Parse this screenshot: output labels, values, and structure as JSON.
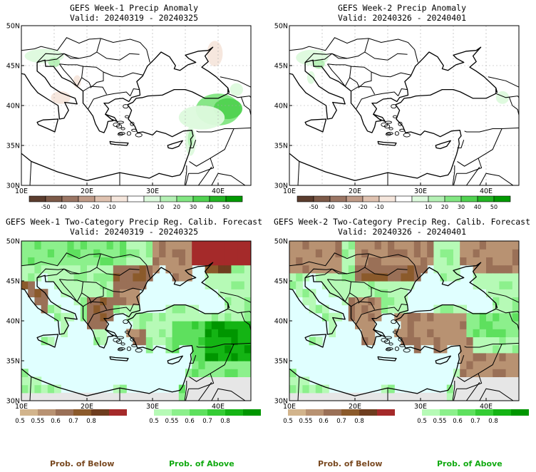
{
  "panels": [
    {
      "title": "GEFS Week-1 Precip Anomaly",
      "valid": "Valid: 20240319 - 20240325",
      "kind": "anomaly",
      "blobs": [
        {
          "lon": 40.0,
          "lat": 39.5,
          "rx": 3.4,
          "ry": 2.0,
          "level": 3
        },
        {
          "lon": 41.5,
          "lat": 39.6,
          "rx": 2.2,
          "ry": 1.3,
          "level": 4
        },
        {
          "lon": 37.5,
          "lat": 38.5,
          "rx": 3.5,
          "ry": 1.5,
          "level": 1
        },
        {
          "lon": 35.8,
          "lat": 35.5,
          "rx": 0.8,
          "ry": 1.8,
          "level": 1
        },
        {
          "lon": 35.8,
          "lat": 35.8,
          "rx": 0.4,
          "ry": 1.0,
          "level": 2
        },
        {
          "lon": 13.5,
          "lat": 46.2,
          "rx": 3.0,
          "ry": 0.9,
          "level": 1
        },
        {
          "lon": 15.0,
          "lat": 45.4,
          "rx": 0.9,
          "ry": 0.6,
          "level": 2
        },
        {
          "lon": 42.8,
          "lat": 42.0,
          "rx": 1.0,
          "ry": 0.8,
          "level": 1
        },
        {
          "lon": 39.5,
          "lat": 46.5,
          "rx": 1.2,
          "ry": 1.6,
          "level": -1
        },
        {
          "lon": 16.0,
          "lat": 41.0,
          "rx": 1.5,
          "ry": 0.8,
          "level": -1
        },
        {
          "lon": 18.5,
          "lat": 43.0,
          "rx": 0.6,
          "ry": 0.8,
          "level": -1
        }
      ]
    },
    {
      "title": "GEFS Week-2 Precip Anomaly",
      "valid": "Valid: 20240326 - 20240401",
      "kind": "anomaly",
      "blobs": [
        {
          "lon": 13.5,
          "lat": 46.0,
          "rx": 2.5,
          "ry": 1.0,
          "level": 1
        },
        {
          "lon": 14.5,
          "lat": 45.2,
          "rx": 0.9,
          "ry": 0.6,
          "level": 2
        },
        {
          "lon": 13.3,
          "lat": 43.5,
          "rx": 0.6,
          "ry": 0.8,
          "level": 1
        },
        {
          "lon": 42.5,
          "lat": 41.0,
          "rx": 1.0,
          "ry": 0.8,
          "level": 1
        }
      ]
    },
    {
      "title": "GEFS Week-1 Two-Category Precip Reg. Calib. Forecast",
      "valid": "Valid: 20240319 - 20240325",
      "kind": "prob"
    },
    {
      "title": "GEFS Week-2 Two-Category Precip Reg. Calib. Forecast",
      "valid": "Valid: 20240326 - 20240401",
      "kind": "prob"
    }
  ],
  "axes": {
    "lon_min": 10,
    "lon_max": 45,
    "lat_min": 30,
    "lat_max": 50,
    "x_ticks": [
      "10E",
      "20E",
      "30E",
      "40E"
    ],
    "y_ticks": [
      "30N",
      "35N",
      "40N",
      "45N",
      "50N"
    ]
  },
  "anomaly_colorbar": {
    "labels": [
      "-50",
      "-40",
      "-30",
      "-20",
      "-10",
      "10",
      "20",
      "30",
      "40",
      "50"
    ],
    "colors": [
      "#5c3d2e",
      "#7d5a48",
      "#9b7664",
      "#c09b88",
      "#dfc2b0",
      "#f5e6dc",
      "#ffffff",
      "#ddfadd",
      "#b4f0b4",
      "#82e682",
      "#50d250",
      "#22b422",
      "#009a00"
    ]
  },
  "prob_below_colorbar": {
    "labels": [
      "0.5",
      "0.55",
      "0.6",
      "0.7",
      "0.8"
    ],
    "colors": [
      "#d2b48c",
      "#b89272",
      "#9a7057",
      "#8b5a2b",
      "#6e3d1f",
      "#a52a2a"
    ]
  },
  "prob_above_colorbar": {
    "labels": [
      "0.5",
      "0.55",
      "0.6",
      "0.7",
      "0.8"
    ],
    "colors": [
      "#b6fab6",
      "#8cf08c",
      "#5ee05e",
      "#34cc34",
      "#14b414",
      "#009600"
    ]
  },
  "legend": {
    "below": "Prob. of Below",
    "above": "Prob. of Above",
    "below_color": "#7a4a22",
    "above_color": "#11aa11"
  },
  "colors": {
    "sea_prob": "#e0ffff",
    "nodata": "#e6e6e6"
  }
}
